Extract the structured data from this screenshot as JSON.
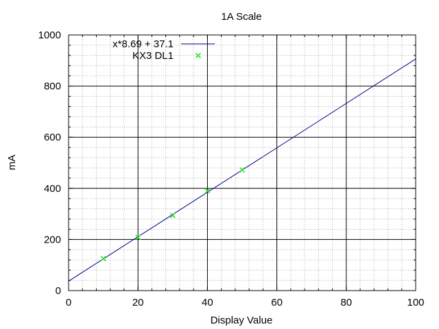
{
  "chart_data": {
    "type": "line",
    "title": "1A Scale",
    "xlabel": "Display Value",
    "ylabel": "mA",
    "xlim": [
      0,
      100
    ],
    "ylim": [
      0,
      1000
    ],
    "xticks": [
      0,
      20,
      40,
      60,
      80,
      100
    ],
    "yticks": [
      0,
      200,
      400,
      600,
      800,
      1000
    ],
    "x_minor_step": 4,
    "y_minor_step": 40,
    "grid": true,
    "legend_position": "top-left",
    "series": [
      {
        "name": "x*8.69 + 37.1",
        "kind": "line",
        "slope": 8.69,
        "intercept": 37.1,
        "x": [
          0,
          100
        ],
        "y": [
          37.1,
          906.1
        ],
        "color": "#00008b"
      },
      {
        "name": "KX3 DL1",
        "kind": "scatter",
        "marker": "x",
        "x": [
          10,
          20,
          30,
          40,
          50
        ],
        "y": [
          125,
          208,
          294,
          390,
          472
        ],
        "color": "#33dd33"
      }
    ]
  }
}
